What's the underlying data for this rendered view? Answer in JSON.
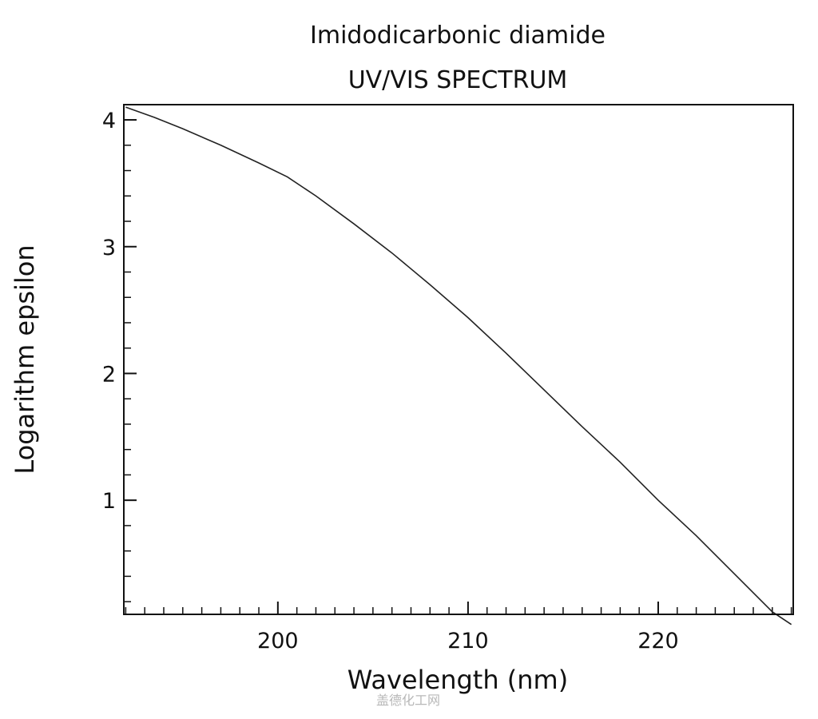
{
  "chart_data": {
    "type": "line",
    "title": "Imidodicarbonic diamide",
    "subtitle": "UV/VIS SPECTRUM",
    "xlabel": "Wavelength (nm)",
    "ylabel": "Logarithm epsilon",
    "xlim": [
      191.9,
      227.1
    ],
    "ylim": [
      0.1,
      4.12
    ],
    "x_ticks_major": [
      200,
      210,
      220
    ],
    "y_ticks_major": [
      1,
      2,
      3,
      4
    ],
    "grid": false,
    "legend": "none",
    "line_color": "#222222",
    "series": [
      {
        "x": [
          192.0,
          193.5,
          195.0,
          197.0,
          199.0,
          200.5,
          202.0,
          204.0,
          206.0,
          208.0,
          210.0,
          212.0,
          214.0,
          216.0,
          218.0,
          220.0,
          222.0,
          224.0,
          226.0,
          227.0
        ],
        "y": [
          4.1,
          4.02,
          3.93,
          3.8,
          3.66,
          3.55,
          3.4,
          3.18,
          2.95,
          2.7,
          2.44,
          2.16,
          1.87,
          1.58,
          1.3,
          1.0,
          0.72,
          0.42,
          0.12,
          0.02
        ]
      }
    ]
  },
  "watermark": "盖德化工网"
}
